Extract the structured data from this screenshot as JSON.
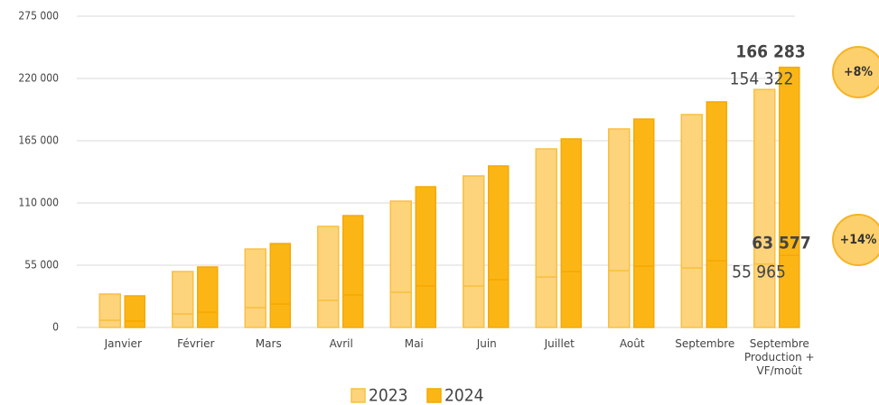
{
  "chart_data": {
    "type": "stacked_bar",
    "categories": [
      "Janvier",
      "Février",
      "Mars",
      "Avril",
      "Mai",
      "Juin",
      "Juillet",
      "Août",
      "Septembre",
      "Septembre\nProduction +\nVF/moût"
    ],
    "series": [
      {
        "name": "2023",
        "color": "#fdd37c",
        "edge": "#f9c040",
        "values": [
          6400,
          12000,
          17500,
          23900,
          31100,
          36700,
          44600,
          50200,
          52600,
          55965
        ],
        "value_labels": [
          null,
          null,
          null,
          null,
          null,
          null,
          null,
          null,
          null,
          "55 965"
        ],
        "upper_values": [
          23100,
          37400,
          51800,
          65400,
          80500,
          97200,
          113200,
          125200,
          135500,
          154322
        ],
        "upper_value_labels": [
          null,
          null,
          null,
          null,
          null,
          null,
          null,
          null,
          null,
          "154 322"
        ]
      },
      {
        "name": "2024",
        "color": "#fbb616",
        "edge": "#f7a800",
        "values": [
          5600,
          13500,
          20700,
          28700,
          36700,
          42200,
          49400,
          54200,
          59000,
          63577
        ],
        "value_labels": [
          null,
          null,
          null,
          null,
          null,
          null,
          null,
          null,
          null,
          "63 577"
        ],
        "upper_values": [
          22300,
          39900,
          53400,
          70100,
          87600,
          100500,
          117200,
          129900,
          140300,
          166283
        ],
        "upper_value_labels": [
          null,
          null,
          null,
          null,
          null,
          null,
          null,
          null,
          null,
          "166 283"
        ]
      }
    ],
    "annotations": [
      "+8%",
      "+14%"
    ],
    "ylim": [
      0,
      275000
    ],
    "yticks": [
      0,
      {
        "value": 55000,
        "label": "55 000"
      },
      {
        "value": 110000,
        "label": "110 000"
      },
      {
        "value": 165000,
        "label": "165 000"
      },
      {
        "value": 220000,
        "label": "220 000"
      },
      {
        "value": 275000,
        "label": "275 000"
      }
    ],
    "grid": true,
    "legend": "bottom"
  }
}
